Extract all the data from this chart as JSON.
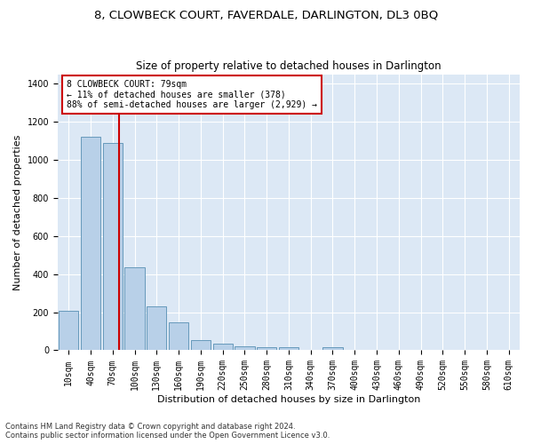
{
  "title": "8, CLOWBECK COURT, FAVERDALE, DARLINGTON, DL3 0BQ",
  "subtitle": "Size of property relative to detached houses in Darlington",
  "xlabel": "Distribution of detached houses by size in Darlington",
  "ylabel": "Number of detached properties",
  "categories": [
    "10sqm",
    "40sqm",
    "70sqm",
    "100sqm",
    "130sqm",
    "160sqm",
    "190sqm",
    "220sqm",
    "250sqm",
    "280sqm",
    "310sqm",
    "340sqm",
    "370sqm",
    "400sqm",
    "430sqm",
    "460sqm",
    "490sqm",
    "520sqm",
    "550sqm",
    "580sqm",
    "610sqm"
  ],
  "bar_heights": [
    207,
    1120,
    1090,
    435,
    230,
    148,
    55,
    37,
    22,
    14,
    14,
    0,
    14,
    0,
    0,
    0,
    0,
    0,
    0,
    0,
    0
  ],
  "bar_color": "#b8d0e8",
  "bar_edge_color": "#6699bb",
  "vline_color": "#cc0000",
  "annotation_line1": "8 CLOWBECK COURT: 79sqm",
  "annotation_line2": "← 11% of detached houses are smaller (378)",
  "annotation_line3": "88% of semi-detached houses are larger (2,929) →",
  "annotation_box_color": "#ffffff",
  "annotation_box_edge": "#cc0000",
  "ylim": [
    0,
    1450
  ],
  "yticks": [
    0,
    200,
    400,
    600,
    800,
    1000,
    1200,
    1400
  ],
  "footer1": "Contains HM Land Registry data © Crown copyright and database right 2024.",
  "footer2": "Contains public sector information licensed under the Open Government Licence v3.0.",
  "bg_color": "#dce8f5",
  "fig_bg_color": "#ffffff",
  "title_fontsize": 9.5,
  "subtitle_fontsize": 8.5,
  "ylabel_fontsize": 8,
  "xlabel_fontsize": 8,
  "tick_fontsize": 7,
  "annotation_fontsize": 7,
  "footer_fontsize": 6
}
